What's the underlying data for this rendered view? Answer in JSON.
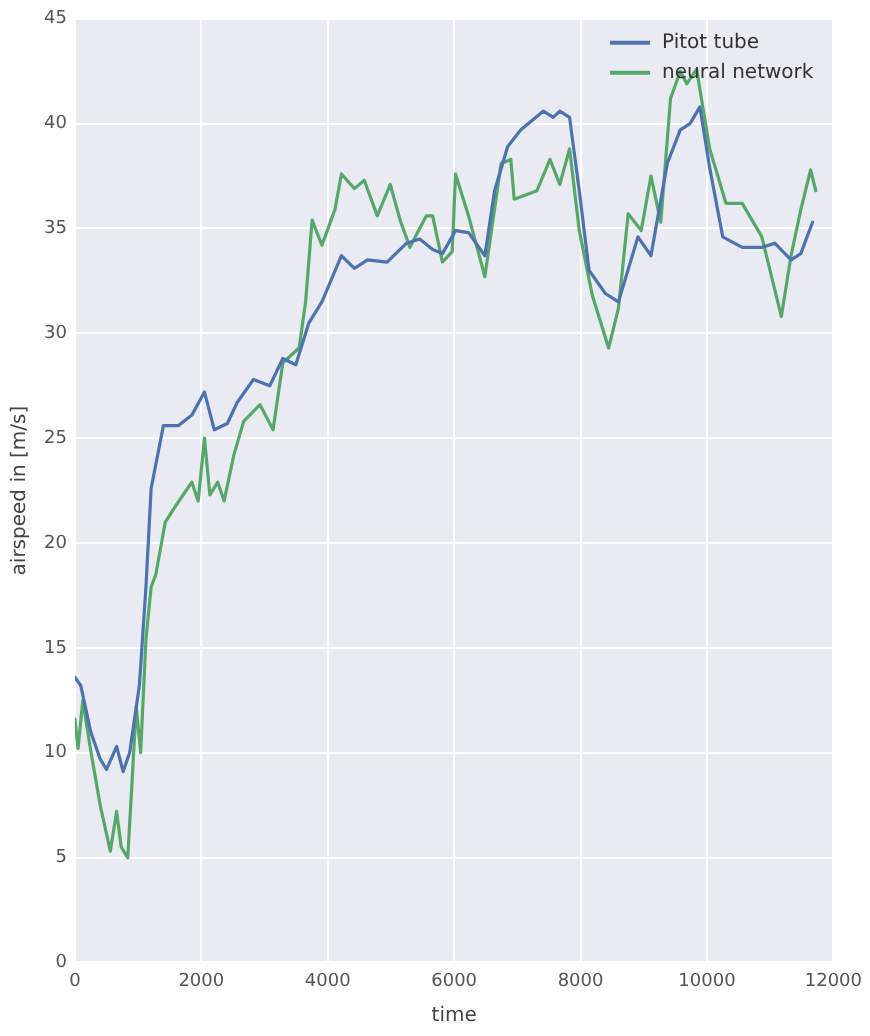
{
  "chart_data": {
    "type": "line",
    "xlabel": "time",
    "ylabel": "airspeed in [m/s]",
    "xlim": [
      0,
      12000
    ],
    "xticks": [
      0,
      2000,
      4000,
      6000,
      8000,
      10000,
      12000
    ],
    "ylim": [
      0,
      45
    ],
    "yticks": [
      0,
      5,
      10,
      15,
      20,
      25,
      30,
      35,
      40,
      45
    ],
    "grid": true,
    "legend": "top right",
    "marker": "none",
    "line_style": "solid",
    "series": [
      {
        "name": "Pitot tube",
        "color": "#4c72b0",
        "x": [
          0,
          93,
          250,
          400,
          500,
          660,
          763,
          866,
          1020,
          1124,
          1206,
          1400,
          1640,
          1850,
          2050,
          2206,
          2412,
          2567,
          2825,
          3083,
          3290,
          3495,
          3702,
          3908,
          4217,
          4423,
          4630,
          4939,
          5248,
          5455,
          5660,
          5815,
          6022,
          6228,
          6486,
          6640,
          6846,
          7052,
          7413,
          7568,
          7671,
          7826,
          7980,
          8135,
          8393,
          8600,
          8908,
          9114,
          9372,
          9578,
          9733,
          9888,
          10043,
          10250,
          10559,
          10868,
          11074,
          11330,
          11485,
          11670
        ],
        "values": [
          13.6,
          13.2,
          11.0,
          9.7,
          9.2,
          10.3,
          9.1,
          10.0,
          13.2,
          17.9,
          22.6,
          25.6,
          25.6,
          26.1,
          27.2,
          25.4,
          25.7,
          26.7,
          27.8,
          27.5,
          28.8,
          28.5,
          30.5,
          31.5,
          33.7,
          33.1,
          33.5,
          33.4,
          34.3,
          34.5,
          34.0,
          33.8,
          34.9,
          34.8,
          33.7,
          36.8,
          38.9,
          39.7,
          40.6,
          40.3,
          40.6,
          40.3,
          36.8,
          33.0,
          31.9,
          31.5,
          34.6,
          33.7,
          38.1,
          39.7,
          40.0,
          40.8,
          37.9,
          34.6,
          34.1,
          34.1,
          34.3,
          33.5,
          33.8,
          35.3
        ]
      },
      {
        "name": "neural network",
        "color": "#55a868",
        "x": [
          0,
          50,
          125,
          250,
          400,
          560,
          660,
          733,
          836,
          900,
          970,
          1040,
          1124,
          1206,
          1280,
          1430,
          1600,
          1850,
          1950,
          2050,
          2135,
          2260,
          2360,
          2515,
          2670,
          2928,
          3135,
          3290,
          3547,
          3650,
          3753,
          3908,
          4114,
          4217,
          4423,
          4578,
          4784,
          4990,
          5145,
          5300,
          5558,
          5660,
          5815,
          5970,
          6022,
          6228,
          6486,
          6743,
          6897,
          6950,
          7310,
          7516,
          7671,
          7826,
          7980,
          8187,
          8444,
          8600,
          8754,
          8960,
          9114,
          9269,
          9424,
          9578,
          9681,
          9836,
          10043,
          10301,
          10559,
          10868,
          11022,
          11177,
          11330,
          11485,
          11640,
          11722
        ],
        "values": [
          11.6,
          10.2,
          12.5,
          10.1,
          7.5,
          5.3,
          7.2,
          5.5,
          5.0,
          8.4,
          12.2,
          10.0,
          15.4,
          17.9,
          18.5,
          21.0,
          21.8,
          22.9,
          22.0,
          25.0,
          22.3,
          22.9,
          22.0,
          24.2,
          25.8,
          26.6,
          25.4,
          28.6,
          29.3,
          31.5,
          35.4,
          34.2,
          35.9,
          37.6,
          36.9,
          37.3,
          35.6,
          37.1,
          35.4,
          34.1,
          35.6,
          35.6,
          33.4,
          33.9,
          37.6,
          35.6,
          32.7,
          38.1,
          38.3,
          36.4,
          36.8,
          38.3,
          37.1,
          38.8,
          34.9,
          31.8,
          29.3,
          31.2,
          35.7,
          34.9,
          37.5,
          35.3,
          41.2,
          42.5,
          41.9,
          42.6,
          38.8,
          36.2,
          36.2,
          34.6,
          32.7,
          30.8,
          33.7,
          35.9,
          37.8,
          36.8
        ]
      }
    ]
  }
}
